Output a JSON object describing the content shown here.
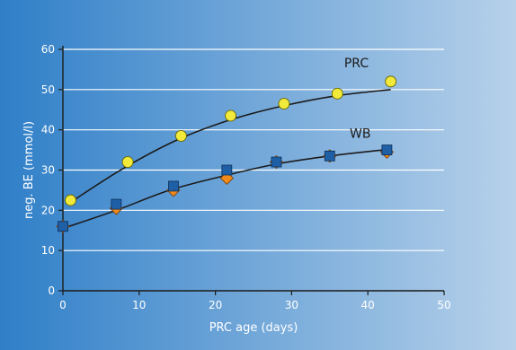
{
  "colors": {
    "background_left": "#2f7fc8",
    "background_right": "#b7d1ea",
    "grid": "#ffffff",
    "axis": "#1b1b1b",
    "line": "#1b1b1b",
    "prc_marker": "#f2ea3a",
    "wb_square": "#1f5fa6",
    "wb_diamond": "#f08a1c"
  },
  "chart_data": {
    "type": "line",
    "title": "",
    "xlabel": "PRC age (days)",
    "ylabel": "neg. BE (mmol/l)",
    "xlim": [
      0,
      50
    ],
    "ylim": [
      0,
      60
    ],
    "x_ticks": [
      "0",
      "10",
      "20",
      "30",
      "40",
      "50"
    ],
    "y_ticks": [
      "0",
      "10",
      "20",
      "30",
      "40",
      "50",
      "60"
    ],
    "grid": "horizontal",
    "legend": "inline labels near curves",
    "series": [
      {
        "name": "PRC",
        "marker": "circle",
        "x": [
          1,
          8.5,
          15.5,
          22,
          29,
          36,
          43
        ],
        "y": [
          22.5,
          32,
          38.5,
          43.5,
          46.5,
          49,
          52
        ],
        "fit_x": [
          1,
          8,
          15,
          22,
          29,
          36,
          43
        ],
        "fit_y": [
          22,
          30.5,
          37.5,
          42.5,
          46,
          48.5,
          50
        ]
      },
      {
        "name": "WB",
        "marker": "square",
        "x": [
          0,
          7,
          14.5,
          21.5,
          28,
          35,
          42.5
        ],
        "y": [
          16,
          21.5,
          26,
          30,
          32,
          33.5,
          35
        ],
        "fit_x": [
          0,
          7,
          14,
          21,
          28,
          35,
          42
        ],
        "fit_y": [
          15.5,
          20,
          25,
          28.5,
          31.5,
          33.5,
          35
        ]
      },
      {
        "marker": "diamond",
        "x": [
          0,
          7,
          14.5,
          21.5,
          28,
          35,
          42.5
        ],
        "y": [
          16,
          20.5,
          25,
          28,
          32,
          33.5,
          34.5
        ]
      }
    ]
  }
}
